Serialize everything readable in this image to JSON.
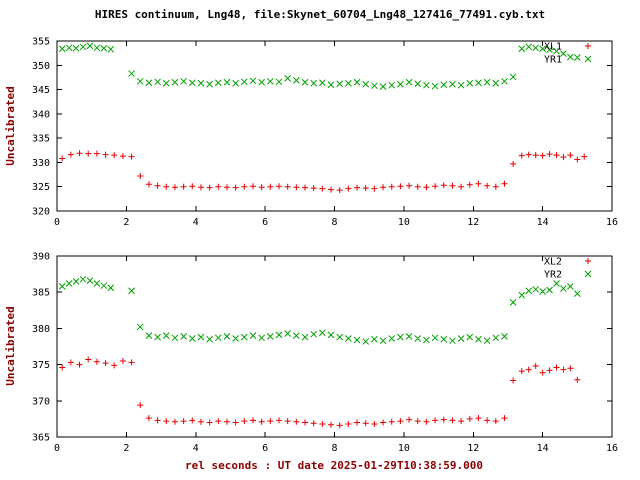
{
  "title": "HIRES continuum, Lng48, file:Skynet_60704_Lng48_127416_77491.cyb.txt",
  "x_axis_label": "rel seconds : UT date 2025-01-29T10:38:59.000",
  "colors": {
    "red": "#e60000",
    "green": "#00a000",
    "label": "#8b0000",
    "frame": "#000000"
  },
  "chart_data": [
    {
      "type": "scatter",
      "ylabel": "Uncalibrated",
      "xlim": [
        0,
        16
      ],
      "ylim": [
        320,
        355
      ],
      "xticks": [
        0,
        2,
        4,
        6,
        8,
        10,
        12,
        14,
        16
      ],
      "yticks": [
        320,
        325,
        330,
        335,
        340,
        345,
        350,
        355
      ],
      "grid": false,
      "legend_position": "top-right-inside",
      "legend": [
        {
          "label": "XL1",
          "color": "red",
          "marker": "plus"
        },
        {
          "label": "YR1",
          "color": "green",
          "marker": "cross"
        }
      ],
      "series": [
        {
          "name": "XL1",
          "color": "red",
          "marker": "plus",
          "points": [
            [
              0.15,
              330.8
            ],
            [
              0.4,
              331.6
            ],
            [
              0.65,
              331.9
            ],
            [
              0.9,
              331.8
            ],
            [
              1.15,
              331.8
            ],
            [
              1.4,
              331.6
            ],
            [
              1.65,
              331.5
            ],
            [
              1.9,
              331.3
            ],
            [
              2.15,
              331.2
            ],
            [
              2.4,
              327.2
            ],
            [
              2.65,
              325.5
            ],
            [
              2.9,
              325.2
            ],
            [
              3.15,
              325.0
            ],
            [
              3.4,
              324.9
            ],
            [
              3.65,
              325.0
            ],
            [
              3.9,
              325.1
            ],
            [
              4.15,
              324.9
            ],
            [
              4.4,
              324.8
            ],
            [
              4.65,
              325.0
            ],
            [
              4.9,
              324.9
            ],
            [
              5.15,
              324.8
            ],
            [
              5.4,
              325.0
            ],
            [
              5.65,
              325.1
            ],
            [
              5.9,
              324.9
            ],
            [
              6.15,
              325.0
            ],
            [
              6.4,
              325.1
            ],
            [
              6.65,
              325.0
            ],
            [
              6.9,
              324.9
            ],
            [
              7.15,
              324.8
            ],
            [
              7.4,
              324.7
            ],
            [
              7.65,
              324.6
            ],
            [
              7.9,
              324.4
            ],
            [
              8.15,
              324.3
            ],
            [
              8.4,
              324.6
            ],
            [
              8.65,
              324.8
            ],
            [
              8.9,
              324.7
            ],
            [
              9.15,
              324.6
            ],
            [
              9.4,
              324.9
            ],
            [
              9.65,
              325.0
            ],
            [
              9.9,
              325.1
            ],
            [
              10.15,
              325.2
            ],
            [
              10.4,
              325.0
            ],
            [
              10.65,
              324.9
            ],
            [
              10.9,
              325.1
            ],
            [
              11.15,
              325.3
            ],
            [
              11.4,
              325.2
            ],
            [
              11.65,
              325.0
            ],
            [
              11.9,
              325.4
            ],
            [
              12.15,
              325.6
            ],
            [
              12.4,
              325.2
            ],
            [
              12.65,
              325.0
            ],
            [
              12.9,
              325.6
            ],
            [
              13.15,
              329.7
            ],
            [
              13.4,
              331.4
            ],
            [
              13.6,
              331.6
            ],
            [
              13.8,
              331.5
            ],
            [
              14.0,
              331.4
            ],
            [
              14.2,
              331.7
            ],
            [
              14.4,
              331.5
            ],
            [
              14.6,
              331.1
            ],
            [
              14.8,
              331.5
            ],
            [
              15.0,
              330.6
            ],
            [
              15.2,
              331.2
            ]
          ]
        },
        {
          "name": "YR1",
          "color": "green",
          "marker": "cross",
          "points": [
            [
              0.15,
              353.4
            ],
            [
              0.35,
              353.6
            ],
            [
              0.55,
              353.5
            ],
            [
              0.75,
              353.8
            ],
            [
              0.95,
              354.0
            ],
            [
              1.15,
              353.6
            ],
            [
              1.35,
              353.5
            ],
            [
              1.55,
              353.3
            ],
            [
              2.15,
              348.3
            ],
            [
              2.4,
              346.7
            ],
            [
              2.65,
              346.4
            ],
            [
              2.9,
              346.6
            ],
            [
              3.15,
              346.3
            ],
            [
              3.4,
              346.5
            ],
            [
              3.65,
              346.7
            ],
            [
              3.9,
              346.4
            ],
            [
              4.15,
              346.3
            ],
            [
              4.4,
              346.1
            ],
            [
              4.65,
              346.4
            ],
            [
              4.9,
              346.5
            ],
            [
              5.15,
              346.3
            ],
            [
              5.4,
              346.6
            ],
            [
              5.65,
              346.8
            ],
            [
              5.9,
              346.5
            ],
            [
              6.15,
              346.7
            ],
            [
              6.4,
              346.6
            ],
            [
              6.65,
              347.3
            ],
            [
              6.9,
              346.9
            ],
            [
              7.15,
              346.5
            ],
            [
              7.4,
              346.3
            ],
            [
              7.65,
              346.4
            ],
            [
              7.9,
              346.0
            ],
            [
              8.15,
              346.2
            ],
            [
              8.4,
              346.3
            ],
            [
              8.65,
              346.5
            ],
            [
              8.9,
              346.1
            ],
            [
              9.15,
              345.8
            ],
            [
              9.4,
              345.6
            ],
            [
              9.65,
              345.9
            ],
            [
              9.9,
              346.1
            ],
            [
              10.15,
              346.5
            ],
            [
              10.4,
              346.2
            ],
            [
              10.65,
              345.9
            ],
            [
              10.9,
              345.7
            ],
            [
              11.15,
              346.0
            ],
            [
              11.4,
              346.1
            ],
            [
              11.65,
              345.9
            ],
            [
              11.9,
              346.3
            ],
            [
              12.15,
              346.4
            ],
            [
              12.4,
              346.5
            ],
            [
              12.65,
              346.3
            ],
            [
              12.9,
              346.7
            ],
            [
              13.15,
              347.6
            ],
            [
              13.4,
              353.4
            ],
            [
              13.6,
              353.8
            ],
            [
              13.8,
              353.6
            ],
            [
              14.0,
              353.4
            ],
            [
              14.2,
              353.2
            ],
            [
              14.4,
              352.9
            ],
            [
              14.6,
              352.4
            ],
            [
              14.8,
              351.7
            ],
            [
              15.0,
              351.6
            ]
          ]
        }
      ]
    },
    {
      "type": "scatter",
      "ylabel": "Uncalibrated",
      "xlim": [
        0,
        16
      ],
      "ylim": [
        365,
        390
      ],
      "xticks": [
        0,
        2,
        4,
        6,
        8,
        10,
        12,
        14,
        16
      ],
      "yticks": [
        365,
        370,
        375,
        380,
        385,
        390
      ],
      "grid": false,
      "legend_position": "top-right-inside",
      "legend": [
        {
          "label": "XL2",
          "color": "red",
          "marker": "plus"
        },
        {
          "label": "YR2",
          "color": "green",
          "marker": "cross"
        }
      ],
      "series": [
        {
          "name": "XL2",
          "color": "red",
          "marker": "plus",
          "points": [
            [
              0.15,
              374.6
            ],
            [
              0.4,
              375.3
            ],
            [
              0.65,
              375.0
            ],
            [
              0.9,
              375.7
            ],
            [
              1.15,
              375.4
            ],
            [
              1.4,
              375.2
            ],
            [
              1.65,
              374.9
            ],
            [
              1.9,
              375.5
            ],
            [
              2.15,
              375.3
            ],
            [
              2.4,
              369.4
            ],
            [
              2.65,
              367.6
            ],
            [
              2.9,
              367.3
            ],
            [
              3.15,
              367.2
            ],
            [
              3.4,
              367.1
            ],
            [
              3.65,
              367.2
            ],
            [
              3.9,
              367.3
            ],
            [
              4.15,
              367.1
            ],
            [
              4.4,
              367.0
            ],
            [
              4.65,
              367.2
            ],
            [
              4.9,
              367.1
            ],
            [
              5.15,
              367.0
            ],
            [
              5.4,
              367.2
            ],
            [
              5.65,
              367.3
            ],
            [
              5.9,
              367.1
            ],
            [
              6.15,
              367.2
            ],
            [
              6.4,
              367.3
            ],
            [
              6.65,
              367.2
            ],
            [
              6.9,
              367.1
            ],
            [
              7.15,
              367.0
            ],
            [
              7.4,
              366.9
            ],
            [
              7.65,
              366.8
            ],
            [
              7.9,
              366.7
            ],
            [
              8.15,
              366.6
            ],
            [
              8.4,
              366.8
            ],
            [
              8.65,
              367.0
            ],
            [
              8.9,
              366.9
            ],
            [
              9.15,
              366.8
            ],
            [
              9.4,
              367.0
            ],
            [
              9.65,
              367.1
            ],
            [
              9.9,
              367.2
            ],
            [
              10.15,
              367.4
            ],
            [
              10.4,
              367.2
            ],
            [
              10.65,
              367.1
            ],
            [
              10.9,
              367.3
            ],
            [
              11.15,
              367.4
            ],
            [
              11.4,
              367.3
            ],
            [
              11.65,
              367.2
            ],
            [
              11.9,
              367.5
            ],
            [
              12.15,
              367.6
            ],
            [
              12.4,
              367.3
            ],
            [
              12.65,
              367.2
            ],
            [
              12.9,
              367.6
            ],
            [
              13.15,
              372.8
            ],
            [
              13.4,
              374.1
            ],
            [
              13.6,
              374.3
            ],
            [
              13.8,
              374.8
            ],
            [
              14.0,
              373.9
            ],
            [
              14.2,
              374.2
            ],
            [
              14.4,
              374.6
            ],
            [
              14.6,
              374.3
            ],
            [
              14.8,
              374.5
            ],
            [
              15.0,
              372.9
            ]
          ]
        },
        {
          "name": "YR2",
          "color": "green",
          "marker": "cross",
          "points": [
            [
              0.15,
              385.8
            ],
            [
              0.35,
              386.2
            ],
            [
              0.55,
              386.5
            ],
            [
              0.75,
              386.8
            ],
            [
              0.95,
              386.6
            ],
            [
              1.15,
              386.2
            ],
            [
              1.35,
              385.9
            ],
            [
              1.55,
              385.6
            ],
            [
              2.15,
              385.2
            ],
            [
              2.4,
              380.2
            ],
            [
              2.65,
              379.0
            ],
            [
              2.9,
              378.8
            ],
            [
              3.15,
              379.0
            ],
            [
              3.4,
              378.7
            ],
            [
              3.65,
              378.9
            ],
            [
              3.9,
              378.6
            ],
            [
              4.15,
              378.8
            ],
            [
              4.4,
              378.5
            ],
            [
              4.65,
              378.7
            ],
            [
              4.9,
              378.9
            ],
            [
              5.15,
              378.6
            ],
            [
              5.4,
              378.8
            ],
            [
              5.65,
              379.0
            ],
            [
              5.9,
              378.7
            ],
            [
              6.15,
              378.9
            ],
            [
              6.4,
              379.1
            ],
            [
              6.65,
              379.3
            ],
            [
              6.9,
              379.0
            ],
            [
              7.15,
              378.8
            ],
            [
              7.4,
              379.2
            ],
            [
              7.65,
              379.4
            ],
            [
              7.9,
              379.1
            ],
            [
              8.15,
              378.8
            ],
            [
              8.4,
              378.6
            ],
            [
              8.65,
              378.4
            ],
            [
              8.9,
              378.2
            ],
            [
              9.15,
              378.5
            ],
            [
              9.4,
              378.3
            ],
            [
              9.65,
              378.6
            ],
            [
              9.9,
              378.8
            ],
            [
              10.15,
              378.9
            ],
            [
              10.4,
              378.6
            ],
            [
              10.65,
              378.4
            ],
            [
              10.9,
              378.7
            ],
            [
              11.15,
              378.5
            ],
            [
              11.4,
              378.3
            ],
            [
              11.65,
              378.6
            ],
            [
              11.9,
              378.8
            ],
            [
              12.15,
              378.5
            ],
            [
              12.4,
              378.3
            ],
            [
              12.65,
              378.7
            ],
            [
              12.9,
              378.9
            ],
            [
              13.15,
              383.6
            ],
            [
              13.4,
              384.6
            ],
            [
              13.6,
              385.2
            ],
            [
              13.8,
              385.4
            ],
            [
              14.0,
              385.1
            ],
            [
              14.2,
              385.3
            ],
            [
              14.4,
              386.2
            ],
            [
              14.6,
              385.5
            ],
            [
              14.8,
              385.8
            ],
            [
              15.0,
              384.8
            ]
          ]
        }
      ]
    }
  ]
}
